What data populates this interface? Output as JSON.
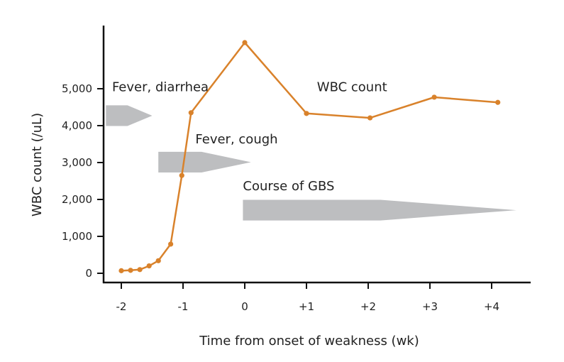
{
  "colors": {
    "series": "#D9822B",
    "bars": "#BDBEC0",
    "axis": "#111111"
  },
  "chart_data": {
    "type": "line",
    "title": "",
    "xlabel": "Time from onset of weakness (wk)",
    "ylabel": "WBC count (/uL)",
    "xlim": [
      -2.2,
      4.6
    ],
    "ylim": [
      -250,
      6700
    ],
    "x_ticks": [
      -2,
      -1,
      0,
      1,
      2,
      3,
      4
    ],
    "x_tick_labels": [
      "-2",
      "-1",
      "0",
      "+1",
      "+2",
      "+3",
      "+4"
    ],
    "y_ticks": [
      0,
      1000,
      2000,
      3000,
      4000,
      5000
    ],
    "y_tick_labels": [
      "0",
      "1,000",
      "2,000",
      "3,000",
      "4,000",
      "5,000"
    ],
    "grid": false,
    "series": [
      {
        "x": [
          -2.0,
          -1.85,
          -1.7,
          -1.55,
          -1.4,
          -1.2,
          -1.02,
          -0.87,
          0.0,
          1.0,
          2.03,
          3.07,
          4.1
        ],
        "y": [
          70,
          80,
          100,
          200,
          340,
          790,
          2650,
          4350,
          6250,
          4330,
          4210,
          4770,
          4630
        ]
      }
    ],
    "annotations": [
      {
        "label": "WBC count",
        "x": 1.17,
        "y": 4930
      },
      {
        "label": "Fever, diarrhea",
        "x": -2.15,
        "y": 4930,
        "bar": {
          "x_start": -2.25,
          "x_full_end": -1.9,
          "x_tip": -1.5,
          "y_center": 4270,
          "height": 560
        }
      },
      {
        "label": "Fever, cough",
        "x": -0.8,
        "y": 3520,
        "bar": {
          "x_start": -1.4,
          "x_full_end": -0.7,
          "x_tip": 0.1,
          "y_center": 3010,
          "height": 560
        }
      },
      {
        "label": "Course of GBS",
        "x": -0.03,
        "y": 2250,
        "bar": {
          "x_start": -0.03,
          "x_full_end": 2.2,
          "x_tip": 4.4,
          "y_center": 1710,
          "height": 560
        }
      }
    ]
  }
}
